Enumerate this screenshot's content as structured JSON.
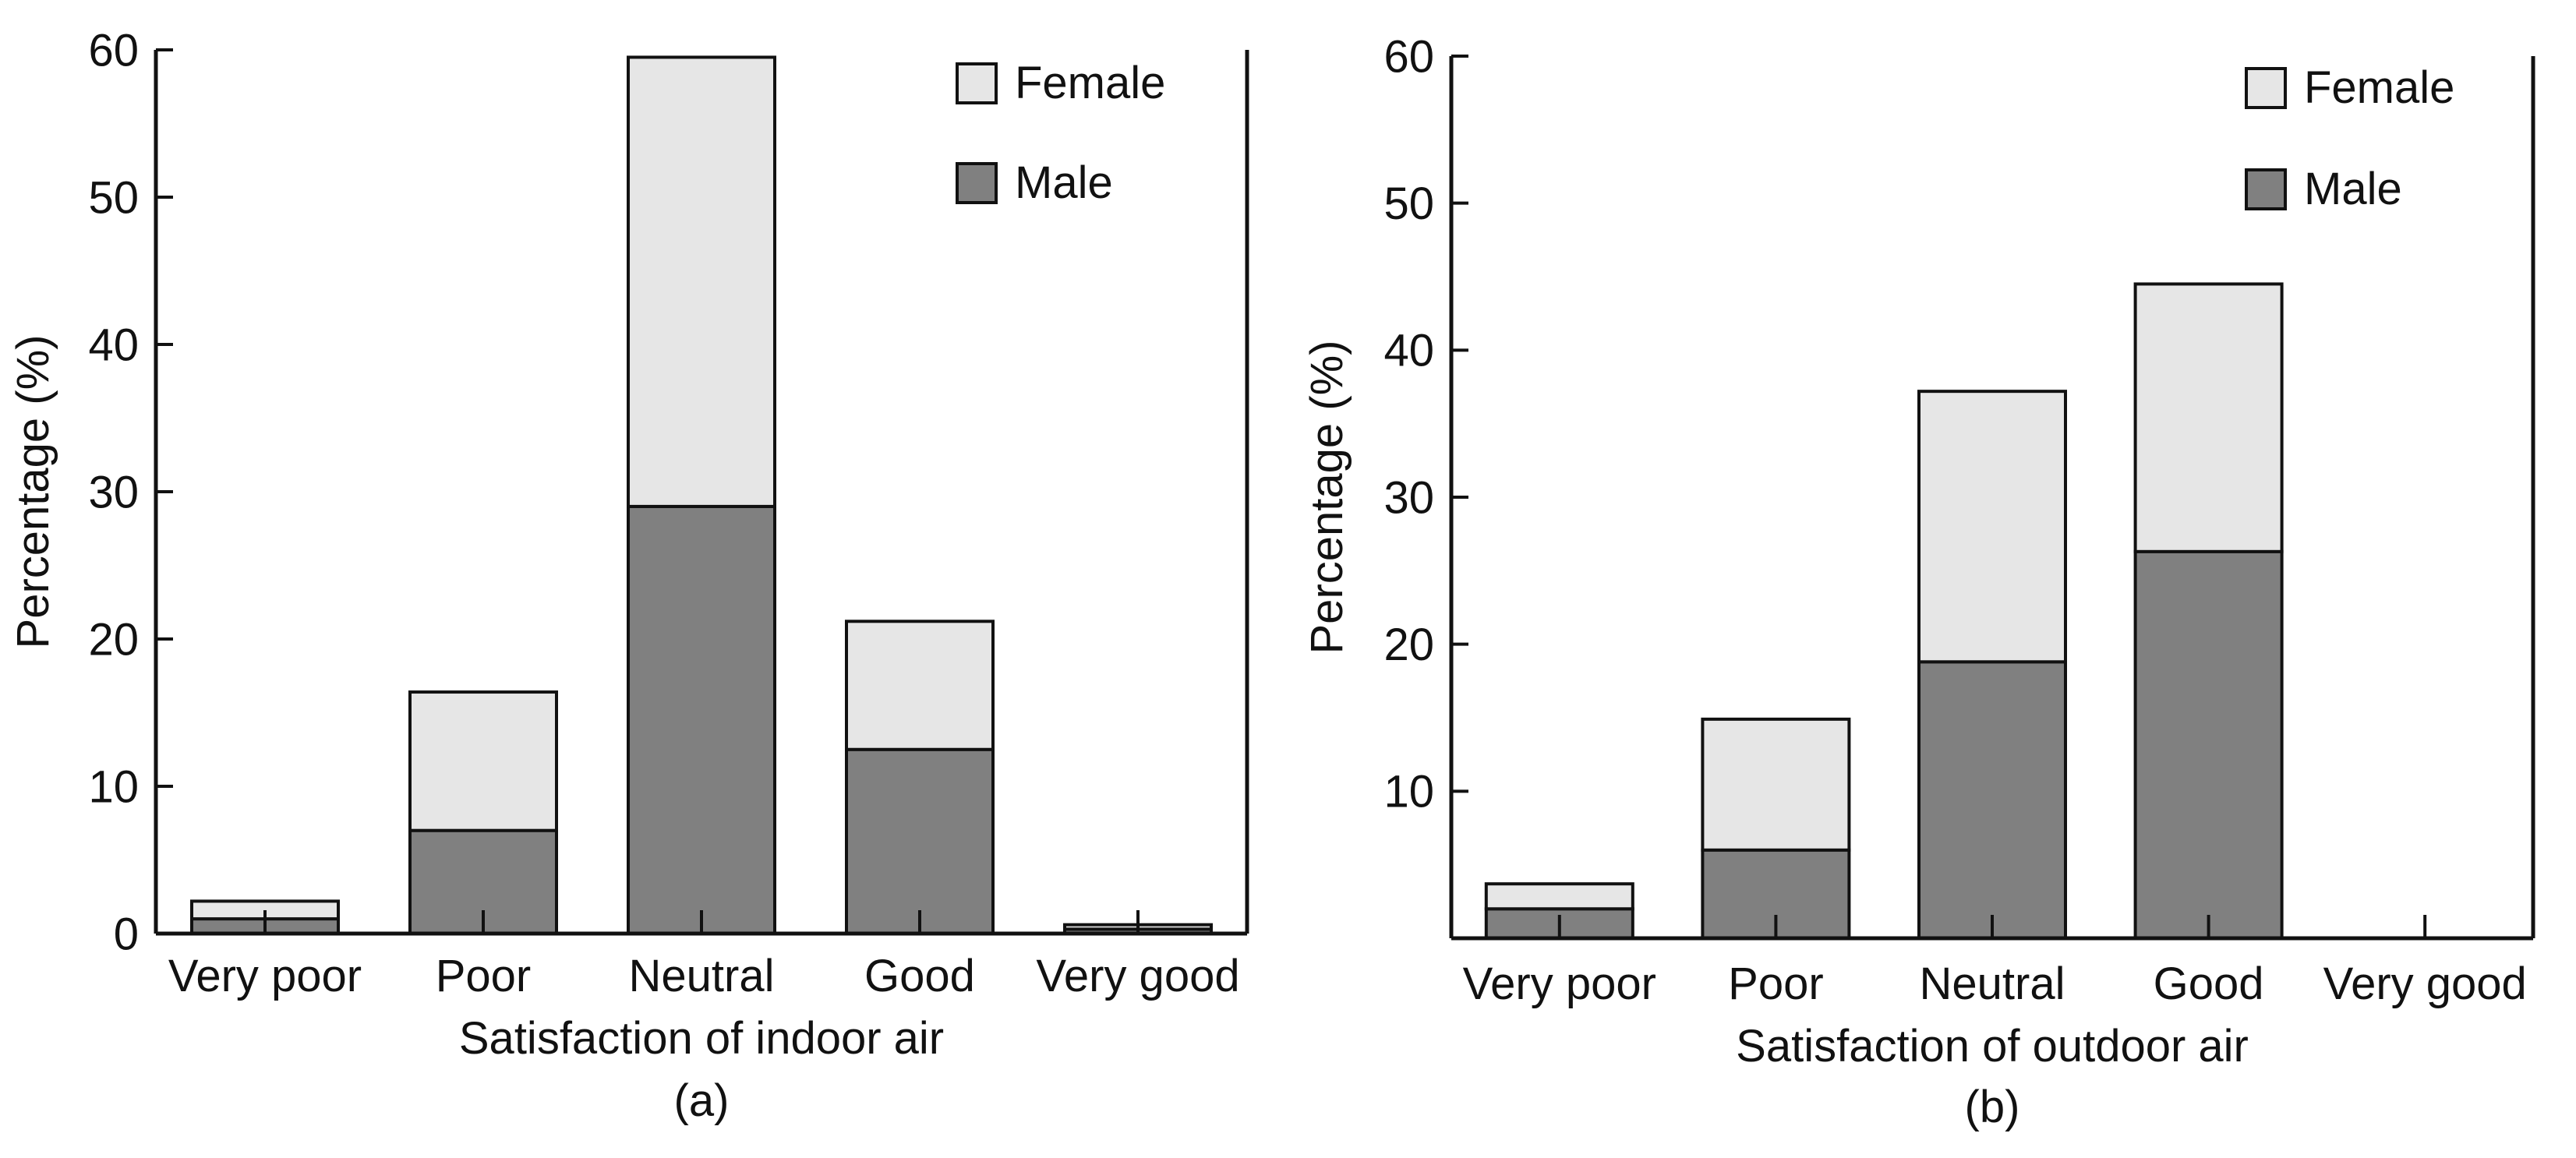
{
  "chart_data": [
    {
      "type": "bar",
      "stacked": true,
      "panel_label": "(a)",
      "title": "",
      "xlabel": "Satisfaction of indoor air",
      "ylabel": "Percentage (%)",
      "categories": [
        "Very poor",
        "Poor",
        "Neutral",
        "Good",
        "Very good"
      ],
      "series": [
        {
          "name": "Male",
          "values": [
            1.0,
            7.0,
            29.0,
            12.5,
            0.3
          ],
          "color": "#808080"
        },
        {
          "name": "Female",
          "values": [
            1.2,
            9.4,
            30.5,
            8.7,
            0.3
          ],
          "color": "#e6e6e6"
        }
      ],
      "ylim": [
        0,
        60
      ],
      "yticks": [
        0,
        10,
        20,
        30,
        40,
        50,
        60
      ],
      "legend": {
        "position": "top-right",
        "order": [
          "Female",
          "Male"
        ]
      },
      "grid": false
    },
    {
      "type": "bar",
      "stacked": true,
      "panel_label": "(b)",
      "title": "",
      "xlabel": "Satisfaction of outdoor air",
      "ylabel": "Percentage (%)",
      "categories": [
        "Very poor",
        "Poor",
        "Neutral",
        "Good",
        "Very good"
      ],
      "series": [
        {
          "name": "Male",
          "values": [
            2.0,
            6.0,
            18.8,
            26.3,
            0.0
          ],
          "color": "#808080"
        },
        {
          "name": "Female",
          "values": [
            1.7,
            8.9,
            18.4,
            18.2,
            0.0
          ],
          "color": "#e6e6e6"
        }
      ],
      "ylim": [
        0,
        60
      ],
      "yticks": [
        10,
        20,
        30,
        40,
        50,
        60
      ],
      "legend": {
        "position": "top-right",
        "order": [
          "Female",
          "Male"
        ]
      },
      "grid": false
    }
  ]
}
